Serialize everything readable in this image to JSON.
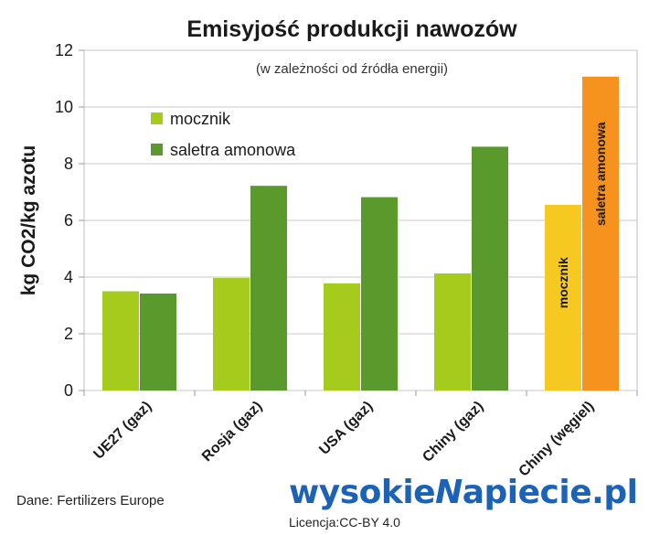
{
  "chart_data": {
    "type": "bar",
    "title": "Emisyjość produkcji nawozów",
    "subtitle": "(w zależności od źródła energii)",
    "ylabel": "kg CO2/kg azotu",
    "xlabel": "",
    "ylim": [
      0,
      12
    ],
    "yticks": [
      0,
      2,
      4,
      6,
      8,
      10,
      12
    ],
    "grid": true,
    "legend_position": "top-left",
    "categories": [
      "UE27 (gaz)",
      "Rosja (gaz)",
      "USA (gaz)",
      "Chiny (gaz)",
      "Chiny (węgiel)"
    ],
    "series": [
      {
        "name": "mocznik",
        "color": "#a5cc1c",
        "highlight_color": "#f5c91f",
        "values": [
          3.5,
          3.97,
          3.78,
          4.13,
          6.55
        ]
      },
      {
        "name": "saletra amonowa",
        "color": "#5a9a2d",
        "highlight_color": "#f6921e",
        "values": [
          3.42,
          7.22,
          6.82,
          8.6,
          11.07
        ]
      }
    ],
    "bar_labels": {
      "mocznik": "mocznik",
      "saletra amonowa": "saletra amonowa"
    }
  },
  "footer": {
    "source": "Dane: Fertilizers Europe",
    "logo_left": "wysokie",
    "logo_slash": "N",
    "logo_right": "apiecie.pl",
    "license": "Licencja:CC-BY 4.0"
  }
}
